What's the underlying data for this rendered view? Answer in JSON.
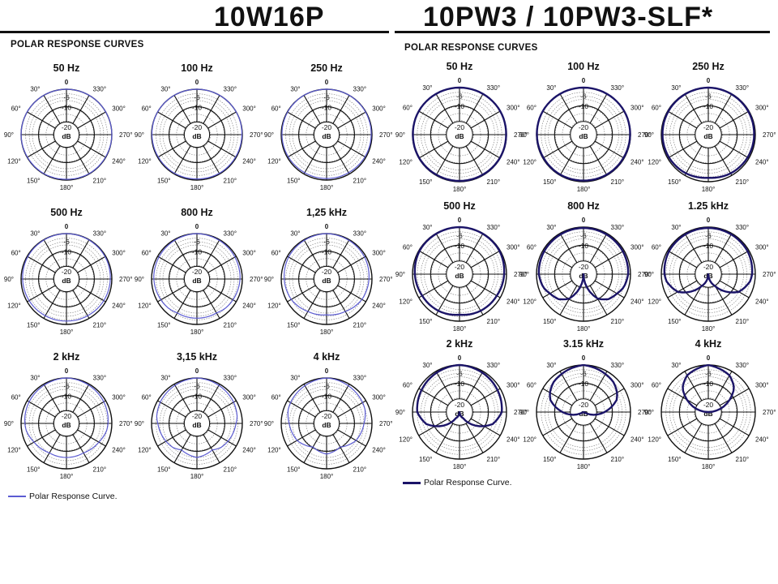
{
  "header": {
    "left_title": "10W16P",
    "right_title": "10PW3  /  10PW3-SLF*",
    "left_section": "POLAR RESPONSE CURVES",
    "right_section": "POLAR RESPONSE CURVES"
  },
  "legend": {
    "left": "Polar Response Curve.",
    "right": "Polar Response Curve."
  },
  "colors": {
    "left_curve": "#5b5bd2",
    "right_curve": "#1b1468",
    "grid": "#111111"
  },
  "chart_data": [
    {
      "type": "polar",
      "panel": "left",
      "radial_labels": [
        "-6",
        "-10",
        "-20"
      ],
      "radial_unit": "dB",
      "angle_labels": [
        "0",
        "30°",
        "60°",
        "90°",
        "120°",
        "150°",
        "180°",
        "210°",
        "240°",
        "270°",
        "300°",
        "330°"
      ],
      "series": [
        {
          "title": "50 Hz",
          "values": [
            0,
            0,
            0,
            0,
            -0.5,
            -0.5,
            -1,
            -0.5,
            -0.5,
            0,
            0,
            0
          ]
        },
        {
          "title": "100 Hz",
          "values": [
            0,
            0,
            0,
            -0.5,
            -1,
            -1,
            -1.5,
            -1,
            -1,
            -0.5,
            0,
            0
          ]
        },
        {
          "title": "250 Hz",
          "values": [
            0,
            0,
            -0.5,
            -1,
            -1.5,
            -2,
            -2,
            -2,
            -1.5,
            -1,
            -0.5,
            0
          ]
        },
        {
          "title": "500 Hz",
          "values": [
            0,
            -0.5,
            -1,
            -2,
            -3,
            -4,
            -4.5,
            -4,
            -3,
            -2,
            -1,
            -0.5
          ]
        },
        {
          "title": "800 Hz",
          "values": [
            0,
            -1,
            -2,
            -3,
            -5,
            -7,
            -7,
            -7,
            -5,
            -3,
            -2,
            -1
          ]
        },
        {
          "title": "1,25 kHz",
          "values": [
            0,
            -1,
            -2,
            -4,
            -6,
            -8,
            -9,
            -8,
            -6,
            -4,
            -2,
            -1
          ]
        },
        {
          "title": "2 kHz",
          "values": [
            0,
            -1.5,
            -3,
            -5,
            -8,
            -10,
            -10,
            -10,
            -8,
            -5,
            -3,
            -1.5
          ]
        },
        {
          "title": "3,15 kHz",
          "values": [
            0,
            -2,
            -4,
            -7,
            -9,
            -11,
            -10,
            -11,
            -9,
            -7,
            -4,
            -2
          ]
        },
        {
          "title": "4 kHz",
          "values": [
            0,
            -2.5,
            -5,
            -8,
            -10,
            -12,
            -11,
            -12,
            -10,
            -8,
            -5,
            -2.5
          ]
        }
      ]
    },
    {
      "type": "polar",
      "panel": "right",
      "radial_labels": [
        "-6",
        "-10",
        "-20"
      ],
      "radial_unit": "dB",
      "angle_labels": [
        "0",
        "30°",
        "60°",
        "90°",
        "120°",
        "150°",
        "180°",
        "210°",
        "240°",
        "270°",
        "300°",
        "330°"
      ],
      "series": [
        {
          "title": "50 Hz",
          "values": [
            0,
            0,
            0,
            -0.5,
            -0.5,
            -1,
            -1,
            -1,
            -0.5,
            -0.5,
            0,
            0
          ]
        },
        {
          "title": "100 Hz",
          "values": [
            0,
            0,
            0,
            -0.5,
            -1,
            -1,
            -1.5,
            -1,
            -1,
            -0.5,
            0,
            0
          ]
        },
        {
          "title": "250 Hz",
          "values": [
            0,
            -0.5,
            -1,
            -1.5,
            -2,
            -3,
            -5,
            -3,
            -2,
            -1.5,
            -1,
            -0.5
          ]
        },
        {
          "title": "500 Hz",
          "values": [
            0,
            -0.5,
            -1,
            -3,
            -5,
            -6,
            -7,
            -6,
            -5,
            -3,
            -1,
            -0.5
          ]
        },
        {
          "title": "800 Hz",
          "values": [
            -1,
            -1.5,
            -2,
            -3,
            -8,
            -12,
            -20,
            -12,
            -8,
            -3,
            -2,
            -1.5
          ]
        },
        {
          "title": "1.25 kHz",
          "values": [
            -1,
            -1.5,
            -2,
            -4,
            -10,
            -16,
            -20,
            -16,
            -10,
            -4,
            -2,
            -1.5
          ]
        },
        {
          "title": "2 kHz",
          "values": [
            0,
            -2,
            -4,
            -6,
            -12,
            -18,
            -20,
            -18,
            -12,
            -6,
            -4,
            -2
          ]
        },
        {
          "title": "3.15 kHz",
          "values": [
            0,
            -4,
            -8,
            -14,
            -20,
            -20,
            -20,
            -20,
            -20,
            -14,
            -8,
            -4
          ]
        },
        {
          "title": "4 kHz",
          "values": [
            0,
            -6,
            -13,
            -20,
            -20,
            -20,
            -20,
            -20,
            -20,
            -20,
            -13,
            -6
          ]
        }
      ]
    }
  ]
}
